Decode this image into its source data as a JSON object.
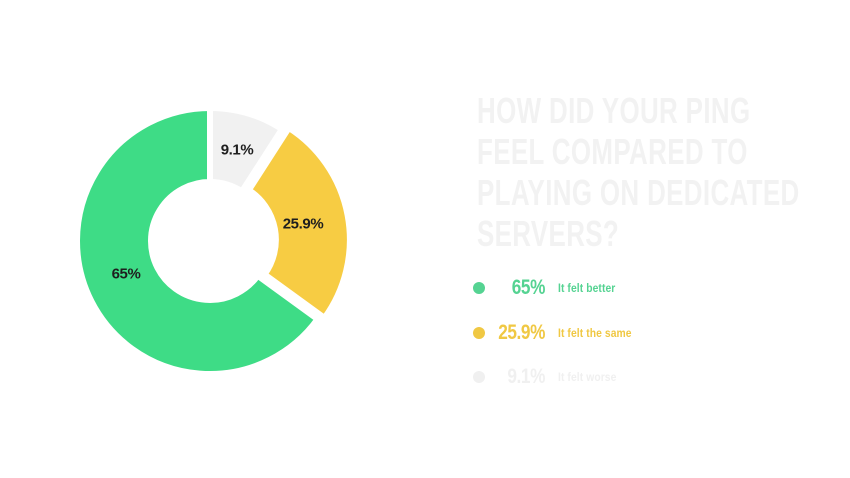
{
  "page": {
    "background_color": "#ffffff"
  },
  "title": {
    "full": "HOW DID YOUR PING FEEL COMPARED TO PLAYING ON DEDICATED SERVERS?",
    "lines": [
      "HOW DID YOUR PING",
      "FEEL COMPARED TO",
      "PLAYING ON DEDICATED",
      "SERVERS?"
    ],
    "color": "#f2f2f2"
  },
  "chart_data": {
    "type": "pie",
    "donut": true,
    "title": "HOW DID YOUR PING FEEL COMPARED TO PLAYING ON DEDICATED SERVERS?",
    "start_angle": "top",
    "direction": "clockwise",
    "draw_order_clockwise_from_top": [
      "It felt worse",
      "It felt the same",
      "It felt better"
    ],
    "legend_position": "right",
    "slice_label_color": "#1e1e1e",
    "gap_color": "#ffffff",
    "segments": [
      {
        "label": "It felt better",
        "value": 65,
        "value_label": "65%",
        "color": "#3edc86",
        "legend_color": "#55d392",
        "exploded": false
      },
      {
        "label": "It felt the same",
        "value": 25.9,
        "value_label": "25.9%",
        "color": "#f7cc43",
        "legend_color": "#f0c843",
        "exploded": true
      },
      {
        "label": "It felt worse",
        "value": 9.1,
        "value_label": "9.1%",
        "color": "#f1f1f1",
        "legend_color": "#f0f0f0",
        "exploded": false
      }
    ]
  }
}
